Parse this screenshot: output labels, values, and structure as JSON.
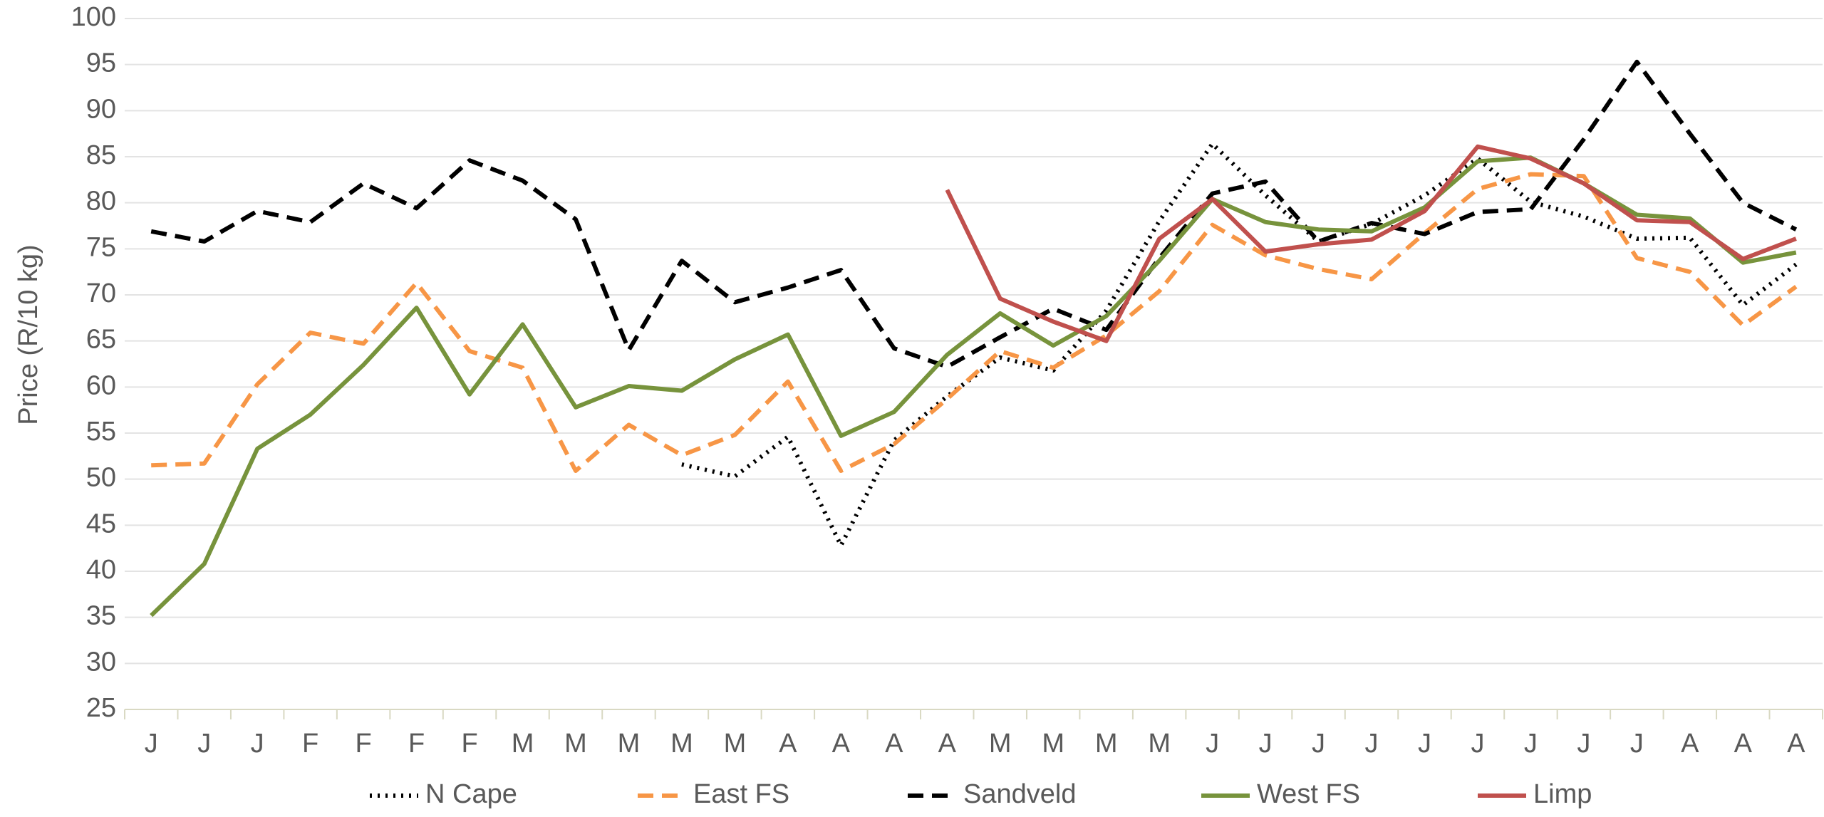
{
  "chart_data": {
    "type": "line",
    "y_label": "Price (R/10 kg)",
    "categories": [
      "J",
      "J",
      "J",
      "F",
      "F",
      "F",
      "F",
      "M",
      "M",
      "M",
      "M",
      "M",
      "A",
      "A",
      "A",
      "A",
      "M",
      "M",
      "M",
      "M",
      "J",
      "J",
      "J",
      "J",
      "J",
      "J",
      "J",
      "J",
      "J",
      "A",
      "A",
      "A"
    ],
    "ylim": [
      25,
      100
    ],
    "yticks": [
      25,
      30,
      35,
      40,
      45,
      50,
      55,
      60,
      65,
      70,
      75,
      80,
      85,
      90,
      95,
      100
    ],
    "grid": true,
    "legend": "bottom",
    "series": [
      {
        "name": "N Cape",
        "color": "#000000",
        "style": "dotted",
        "values": [
          null,
          null,
          null,
          null,
          null,
          null,
          null,
          null,
          null,
          null,
          51.6,
          50.3,
          54.6,
          42.8,
          54.2,
          59.0,
          63.2,
          61.8,
          68.3,
          78.0,
          86.4,
          80.8,
          75.8,
          77.7,
          80.8,
          84.8,
          80.1,
          78.5,
          76.1,
          76.2,
          68.9,
          73.3
        ]
      },
      {
        "name": "East FS",
        "color": "#f79646",
        "style": "dashed",
        "values": [
          51.5,
          51.7,
          60.3,
          65.9,
          64.7,
          71.3,
          63.9,
          62.1,
          50.9,
          55.9,
          52.6,
          54.8,
          60.6,
          50.9,
          53.8,
          58.7,
          63.9,
          62.1,
          65.6,
          70.4,
          77.6,
          74.3,
          72.8,
          71.7,
          76.7,
          81.5,
          83.1,
          82.9,
          74.0,
          72.5,
          66.7,
          70.9
        ]
      },
      {
        "name": "Sandveld",
        "color": "#000000",
        "style": "dashed",
        "values": [
          76.9,
          75.8,
          79.1,
          77.9,
          82.1,
          79.4,
          84.6,
          82.4,
          78.2,
          64.0,
          73.7,
          69.2,
          70.8,
          72.7,
          64.2,
          62.2,
          65.4,
          68.5,
          66.2,
          74.0,
          81.0,
          82.3,
          75.8,
          77.8,
          76.6,
          79.0,
          79.3,
          86.9,
          95.3,
          87.5,
          80.0,
          77.1
        ]
      },
      {
        "name": "West FS",
        "color": "#77933c",
        "style": "solid",
        "values": [
          35.2,
          40.8,
          53.3,
          57.0,
          62.4,
          68.6,
          59.2,
          66.8,
          57.8,
          60.1,
          59.6,
          63.0,
          65.7,
          54.7,
          57.3,
          63.5,
          68.0,
          64.5,
          67.7,
          73.7,
          80.4,
          77.9,
          77.1,
          76.9,
          79.5,
          84.5,
          84.9,
          82.1,
          78.7,
          78.3,
          73.5,
          74.6
        ]
      },
      {
        "name": "Limp",
        "color": "#c0504d",
        "style": "solid",
        "values": [
          null,
          null,
          null,
          null,
          null,
          null,
          null,
          null,
          null,
          null,
          null,
          null,
          null,
          null,
          null,
          81.4,
          69.6,
          67.1,
          65.0,
          76.1,
          80.4,
          74.7,
          75.5,
          76.0,
          79.1,
          86.1,
          84.8,
          82.1,
          78.1,
          77.9,
          73.9,
          76.1
        ]
      }
    ]
  }
}
